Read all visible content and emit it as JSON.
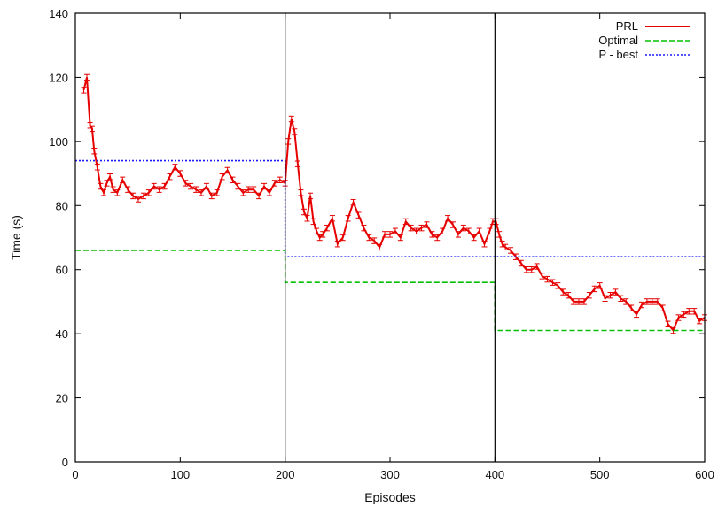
{
  "chart_data": {
    "type": "line",
    "title": "",
    "xlabel": "Episodes",
    "ylabel": "Time (s)",
    "xlim": [
      0,
      600
    ],
    "ylim": [
      0,
      140
    ],
    "xticks": [
      0,
      100,
      200,
      300,
      400,
      500,
      600
    ],
    "yticks": [
      0,
      20,
      40,
      60,
      80,
      100,
      120,
      140
    ],
    "grid": false,
    "legend_position": "top-right",
    "vertical_markers": [
      200,
      400
    ],
    "series": [
      {
        "name": "PRL",
        "color": "#e60000",
        "style": "solid",
        "error_bars": true,
        "x": [
          8,
          11,
          14,
          16,
          18,
          21,
          24,
          27,
          30,
          33,
          36,
          40,
          45,
          50,
          55,
          60,
          65,
          70,
          75,
          80,
          85,
          90,
          95,
          100,
          105,
          110,
          115,
          120,
          125,
          130,
          135,
          140,
          145,
          150,
          155,
          160,
          165,
          170,
          175,
          180,
          185,
          190,
          195,
          200,
          203,
          206,
          209,
          212,
          215,
          218,
          221,
          224,
          227,
          230,
          233,
          236,
          240,
          245,
          250,
          255,
          260,
          265,
          270,
          275,
          280,
          285,
          290,
          295,
          300,
          305,
          310,
          315,
          320,
          325,
          330,
          335,
          340,
          345,
          350,
          355,
          360,
          365,
          370,
          375,
          380,
          385,
          390,
          395,
          398,
          401,
          404,
          407,
          410,
          415,
          420,
          425,
          430,
          435,
          440,
          445,
          450,
          455,
          460,
          465,
          470,
          475,
          480,
          485,
          490,
          495,
          500,
          505,
          510,
          515,
          520,
          525,
          530,
          535,
          540,
          545,
          550,
          555,
          560,
          565,
          570,
          575,
          580,
          585,
          590,
          595,
          600
        ],
        "y": [
          116,
          120,
          105,
          104,
          97,
          92,
          86,
          84,
          87,
          89,
          85,
          84,
          88,
          85,
          83,
          82,
          83,
          84,
          86,
          85,
          86,
          89,
          92,
          90,
          87,
          86,
          85,
          84,
          86,
          83,
          84,
          89,
          91,
          88,
          86,
          84,
          85,
          85,
          83,
          86,
          84,
          87,
          88,
          87,
          100,
          107,
          103,
          93,
          84,
          78,
          76,
          83,
          75,
          72,
          70,
          71,
          73,
          76,
          68,
          70,
          76,
          81,
          77,
          73,
          70,
          69,
          67,
          71,
          71,
          72,
          70,
          75,
          73,
          72,
          73,
          74,
          71,
          70,
          72,
          76,
          74,
          71,
          73,
          72,
          70,
          72,
          68,
          72,
          75,
          75,
          71,
          68,
          67,
          66,
          64,
          62,
          60,
          60,
          61,
          58,
          57,
          56,
          55,
          53,
          52,
          50,
          50,
          50,
          52,
          54,
          55,
          51,
          52,
          53,
          51,
          50,
          48,
          46,
          49,
          50,
          50,
          50,
          48,
          43,
          41,
          45,
          46,
          47,
          47,
          44,
          45
        ]
      },
      {
        "name": "Optimal",
        "color": "#00c000",
        "style": "dashed",
        "step": true,
        "x": [
          0,
          200,
          200,
          400,
          400,
          600
        ],
        "y": [
          66,
          66,
          56,
          56,
          41,
          41
        ]
      },
      {
        "name": "P - best",
        "color": "#1a1aff",
        "style": "dotted",
        "step": true,
        "x": [
          0,
          200,
          200,
          600
        ],
        "y": [
          94,
          94,
          64,
          64
        ]
      }
    ]
  }
}
